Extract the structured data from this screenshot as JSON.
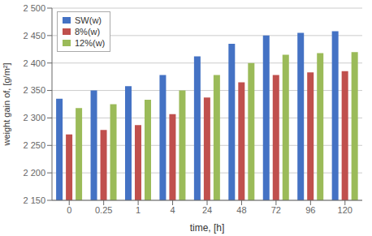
{
  "chart_data": {
    "type": "bar",
    "categories": [
      "0",
      "0.25",
      "1",
      "4",
      "24",
      "48",
      "72",
      "96",
      "120"
    ],
    "series": [
      {
        "name": "SW(w)",
        "color": "#4472C4",
        "values": [
          2335,
          2350,
          2358,
          2378,
          2412,
          2435,
          2450,
          2455,
          2458
        ]
      },
      {
        "name": "8%(w)",
        "color": "#C0504D",
        "values": [
          2270,
          2278,
          2287,
          2307,
          2337,
          2365,
          2378,
          2383,
          2385
        ]
      },
      {
        "name": "12%(w)",
        "color": "#9BBB59",
        "values": [
          2318,
          2325,
          2333,
          2350,
          2378,
          2400,
          2415,
          2418,
          2420
        ]
      }
    ],
    "xlabel": "time, [h]",
    "ylabel": "weight gain of, [g/m²]",
    "ylim": [
      2150,
      2500
    ],
    "yticks": [
      {
        "value": 2150,
        "label": "2 150"
      },
      {
        "value": 2200,
        "label": "2 200"
      },
      {
        "value": 2250,
        "label": "2 250"
      },
      {
        "value": 2300,
        "label": "2 300"
      },
      {
        "value": 2350,
        "label": "2 350"
      },
      {
        "value": 2400,
        "label": "2 400"
      },
      {
        "value": 2450,
        "label": "2 450"
      },
      {
        "value": 2500,
        "label": "2 500"
      }
    ],
    "grid": true,
    "legend": "upper left"
  }
}
